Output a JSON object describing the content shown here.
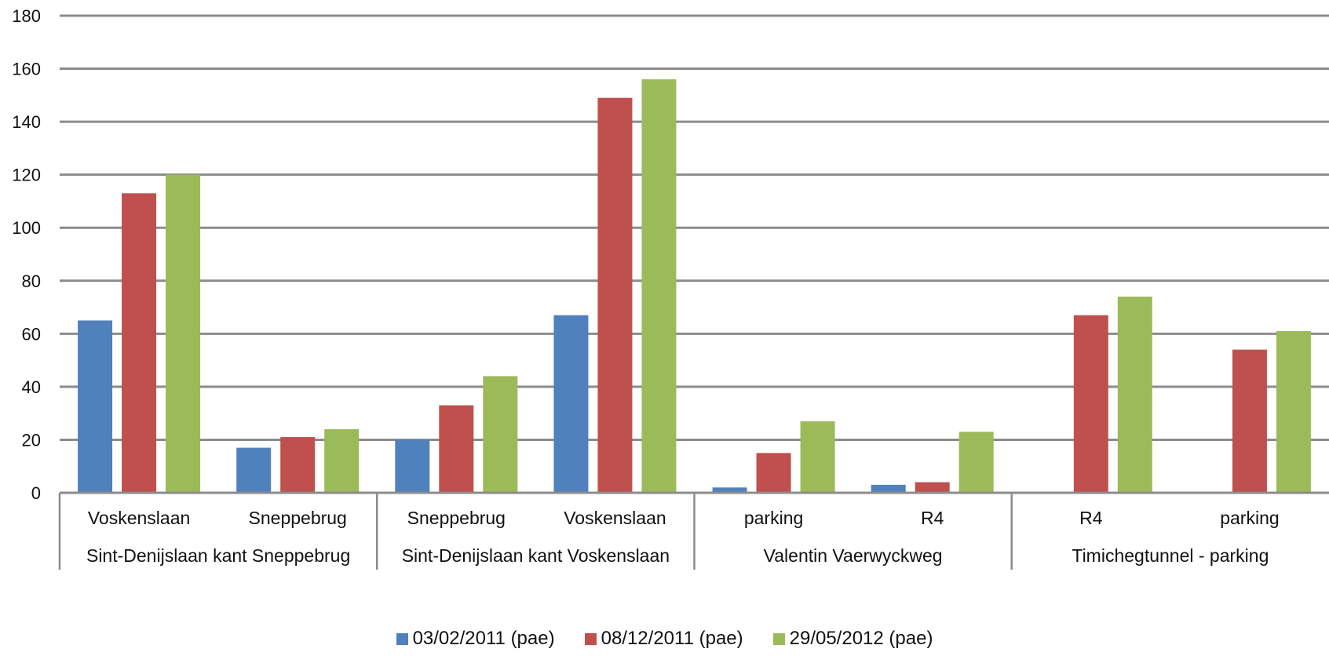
{
  "chart_data": {
    "type": "bar",
    "title": "",
    "xlabel": "",
    "ylabel": "",
    "ylim": [
      0,
      180
    ],
    "yticks": [
      0,
      20,
      40,
      60,
      80,
      100,
      120,
      140,
      160,
      180
    ],
    "grid": true,
    "legend_position": "bottom",
    "groups": [
      {
        "label": "Sint-Denijslaan kant Sneppebrug",
        "categories": [
          "Voskenslaan",
          "Sneppebrug"
        ]
      },
      {
        "label": "Sint-Denijslaan kant Voskenslaan",
        "categories": [
          "Sneppebrug",
          "Voskenslaan"
        ]
      },
      {
        "label": "Valentin Vaerwyckweg",
        "categories": [
          "parking",
          "R4"
        ]
      },
      {
        "label": "Timichegtunnel - parking",
        "categories": [
          "R4",
          "parking"
        ]
      }
    ],
    "categories": [
      "Voskenslaan",
      "Sneppebrug",
      "Sneppebrug",
      "Voskenslaan",
      "parking",
      "R4",
      "R4",
      "parking"
    ],
    "series": [
      {
        "name": "03/02/2011 (pae)",
        "color": "#4f81bd",
        "values": [
          65,
          17,
          20,
          67,
          2,
          3,
          null,
          null
        ]
      },
      {
        "name": "08/12/2011 (pae)",
        "color": "#c0504d",
        "values": [
          113,
          21,
          33,
          149,
          15,
          4,
          67,
          54
        ]
      },
      {
        "name": "29/05/2012 (pae)",
        "color": "#9bbb59",
        "values": [
          120,
          24,
          44,
          156,
          27,
          23,
          74,
          61
        ]
      }
    ]
  }
}
